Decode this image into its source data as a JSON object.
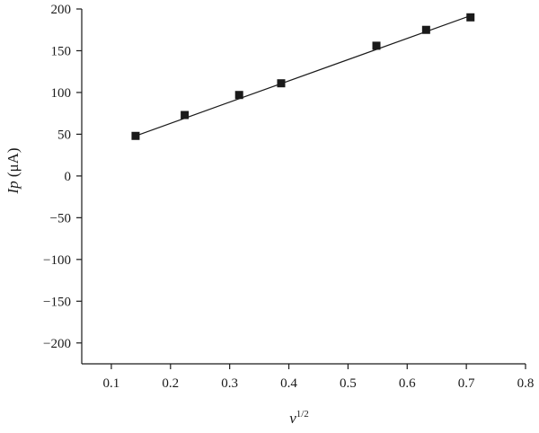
{
  "chart_data": {
    "type": "scatter",
    "xlabel": "v",
    "xlabel_sup": "1/2",
    "ylabel": "Ip (μA)",
    "ylabel_parts": {
      "italic": "Ip",
      "rest": " (μA)"
    },
    "xlim": [
      0.05,
      0.8
    ],
    "ylim": [
      -225,
      200
    ],
    "xticks": [
      0.1,
      0.2,
      0.3,
      0.4,
      0.5,
      0.6,
      0.7,
      0.8
    ],
    "xtick_labels": [
      "0.1",
      "0.2",
      "0.3",
      "0.4",
      "0.5",
      "0.6",
      "0.7",
      "0.8"
    ],
    "yticks": [
      200,
      150,
      100,
      50,
      0,
      -50,
      -100,
      -150,
      -200
    ],
    "ytick_labels": [
      "200",
      "150",
      "100",
      "50",
      "0",
      "−50",
      "−100",
      "−150",
      "−200"
    ],
    "grid": false,
    "series": [
      {
        "marker": "square",
        "color": "#1a1a1a",
        "x": [
          0.141,
          0.224,
          0.316,
          0.387,
          0.548,
          0.632,
          0.707
        ],
        "y": [
          48,
          73,
          97,
          111,
          156,
          175,
          190
        ]
      }
    ],
    "fit_line": {
      "x": [
        0.141,
        0.707
      ],
      "y": [
        48,
        192
      ]
    }
  }
}
